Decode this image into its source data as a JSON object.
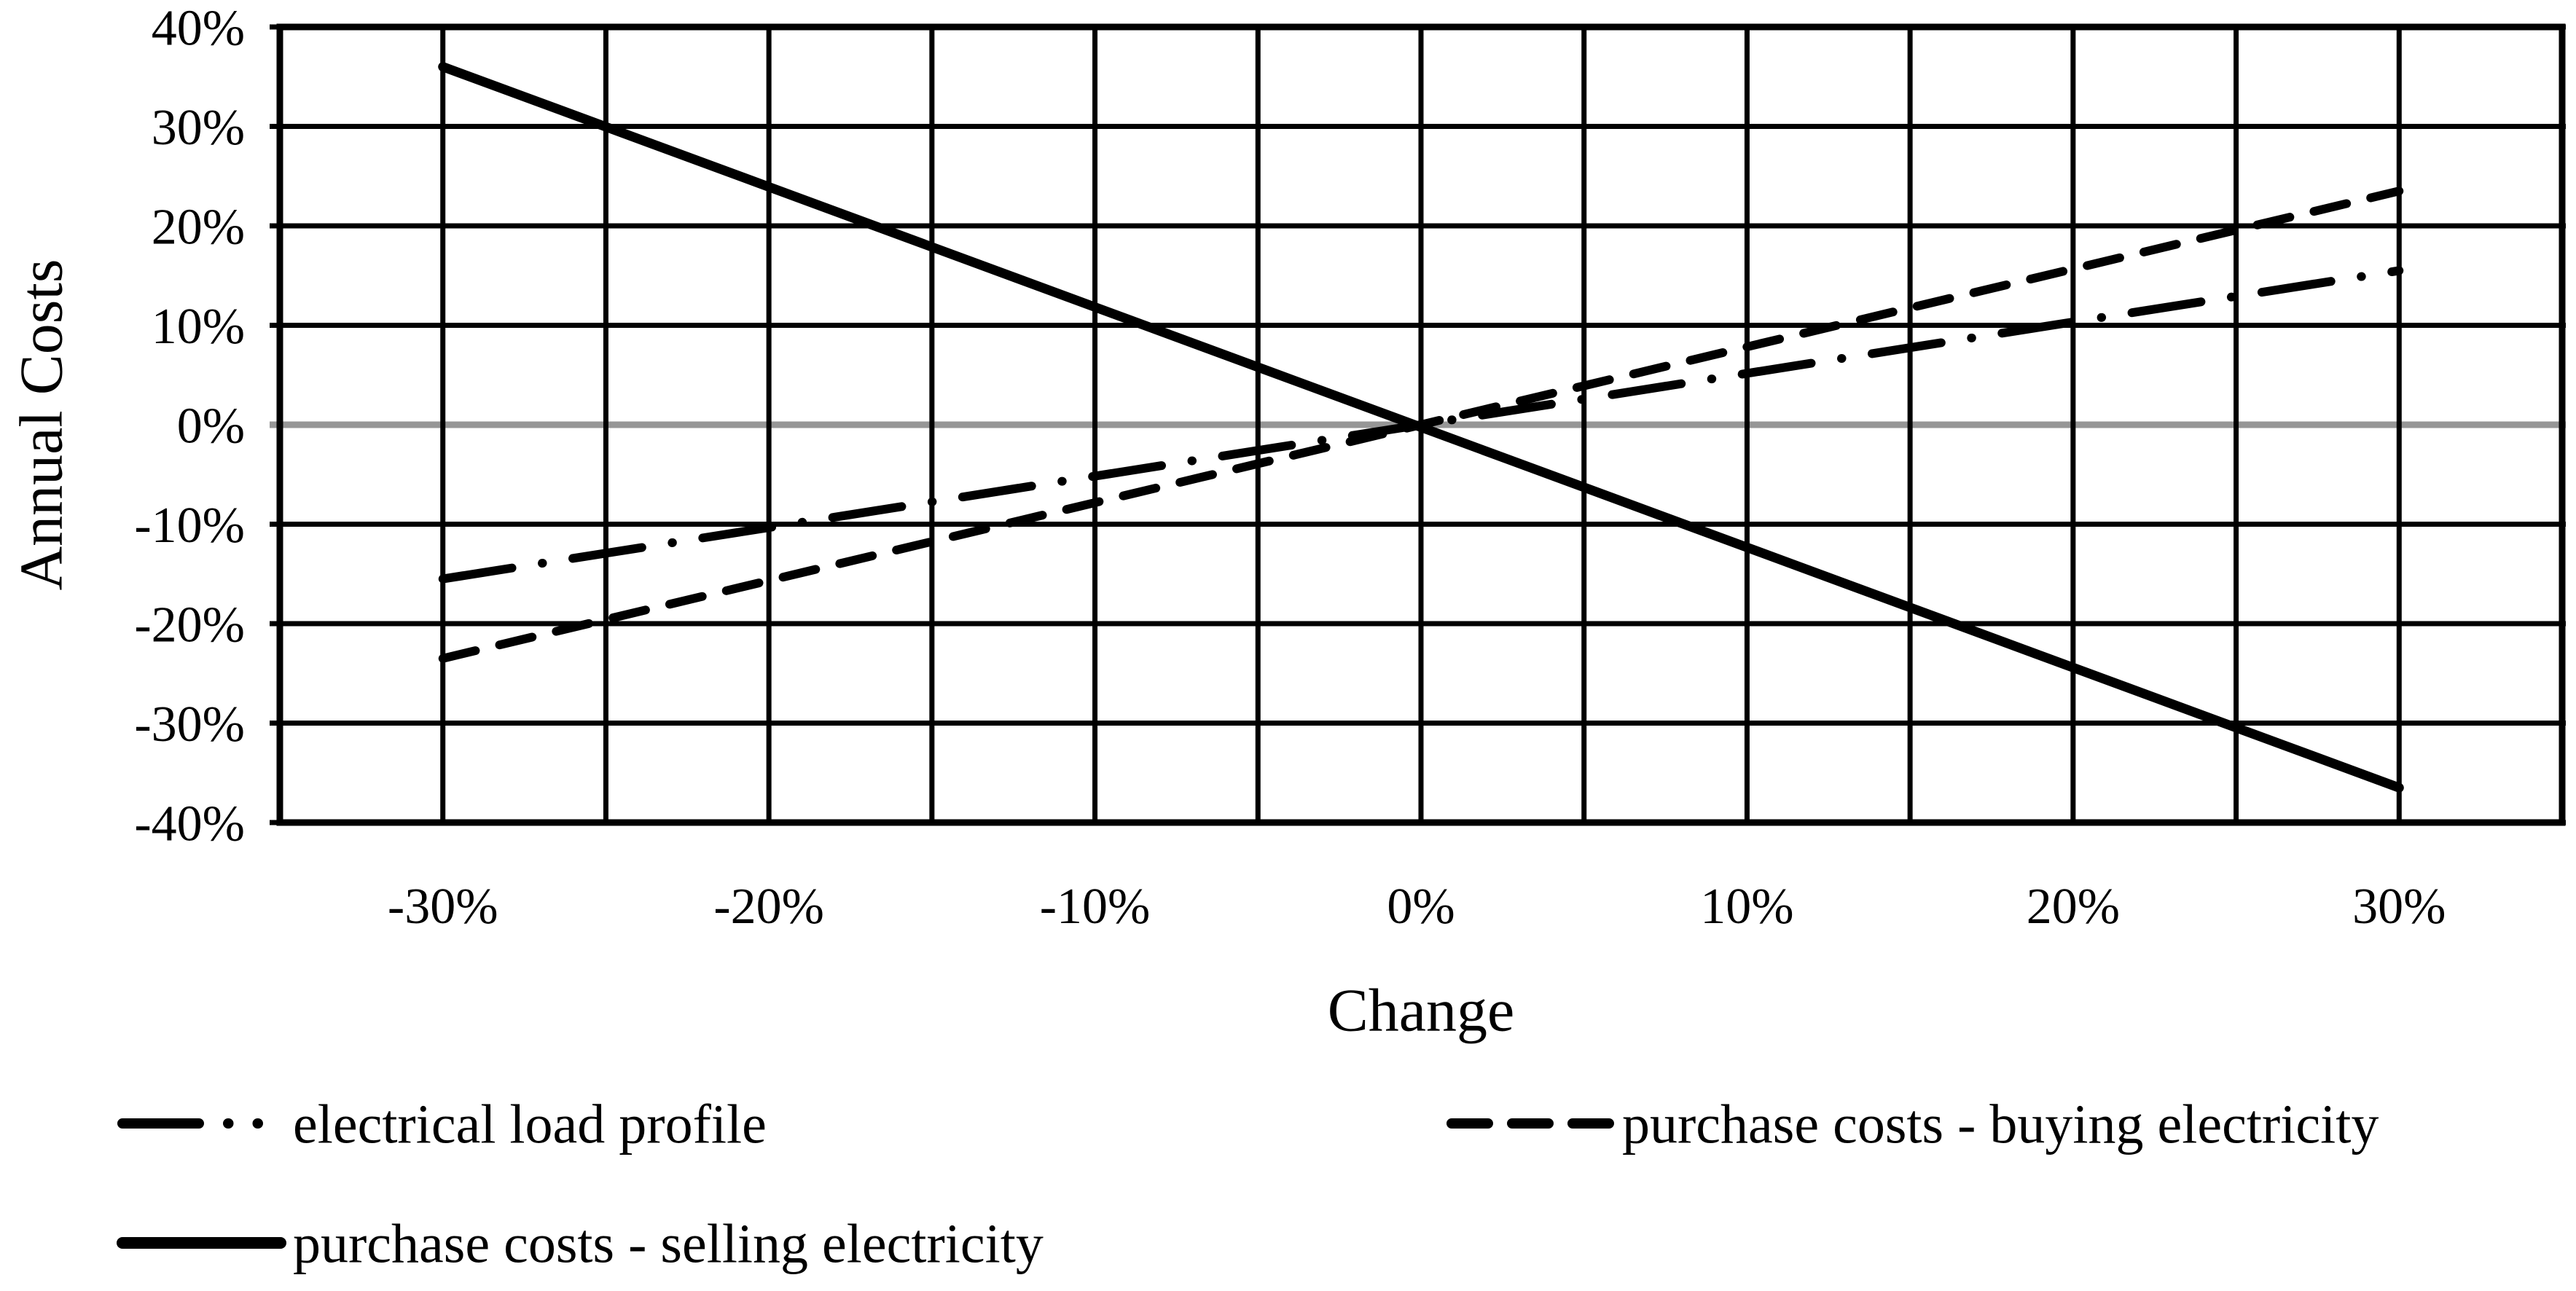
{
  "figure": {
    "background": "#ffffff",
    "line_color": "#000000",
    "zero_line_color": "#969696"
  },
  "chart_data": {
    "type": "line",
    "title": "",
    "x": {
      "label": "Change",
      "range": [
        -35,
        35
      ],
      "grid_step": 5,
      "ticks": [
        {
          "v": -30,
          "label": "-30%"
        },
        {
          "v": -20,
          "label": "-20%"
        },
        {
          "v": -10,
          "label": "-10%"
        },
        {
          "v": 0,
          "label": "0%"
        },
        {
          "v": 10,
          "label": "10%"
        },
        {
          "v": 20,
          "label": "20%"
        },
        {
          "v": 30,
          "label": "30%"
        }
      ]
    },
    "y": {
      "label": "Annual Costs",
      "range": [
        -40,
        40
      ],
      "grid_step": 10,
      "ticks": [
        {
          "v": 40,
          "label": "40%"
        },
        {
          "v": 30,
          "label": "30%"
        },
        {
          "v": 20,
          "label": "20%"
        },
        {
          "v": 10,
          "label": "10%"
        },
        {
          "v": 0,
          "label": "0%"
        },
        {
          "v": -10,
          "label": "-10%"
        },
        {
          "v": -20,
          "label": "-20%"
        },
        {
          "v": -30,
          "label": "-30%"
        },
        {
          "v": -40,
          "label": "-40%"
        }
      ]
    },
    "grid": "on",
    "legend_position": "bottom",
    "series": [
      {
        "name": "electrical load profile",
        "style": "dash-dot",
        "color": "#000000",
        "points": [
          [
            -30,
            -15.5
          ],
          [
            30,
            15.5
          ]
        ]
      },
      {
        "name": "purchase costs - buying electricity",
        "style": "dashed",
        "color": "#000000",
        "points": [
          [
            -30,
            -23.5
          ],
          [
            30,
            23.5
          ]
        ]
      },
      {
        "name": "purchase costs - selling electricity",
        "style": "solid",
        "color": "#000000",
        "points": [
          [
            -30,
            36
          ],
          [
            30,
            -36.5
          ]
        ]
      }
    ]
  }
}
